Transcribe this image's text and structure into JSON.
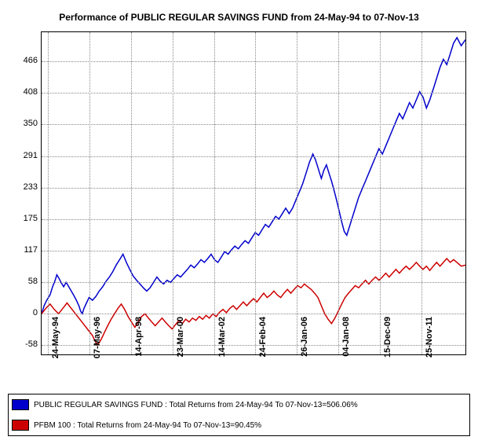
{
  "chart": {
    "title": "Performance of PUBLIC REGULAR SAVINGS FUND from 24-May-94 to 07-Nov-13",
    "title_fontsize": 12,
    "background_color": "#ffffff",
    "grid_color": "#888888",
    "border_color": "#000000",
    "ylim": [
      -75,
      520
    ],
    "yticks": [
      -58,
      0,
      58,
      117,
      175,
      233,
      291,
      350,
      408,
      466
    ],
    "x_labels": [
      "24-May-94",
      "07-May-96",
      "14-Apr-98",
      "23-Mar-00",
      "14-Mar-02",
      "24-Feb-04",
      "26-Jan-06",
      "04-Jan-08",
      "15-Dec-09",
      "25-Nov-11"
    ],
    "series": [
      {
        "name": "PUBLIC REGULAR SAVINGS FUND",
        "color": "#0000cc",
        "line_width": 1.5,
        "legend": "PUBLIC REGULAR SAVINGS FUND : Total Returns from 24-May-94 To 07-Nov-13=506.06%",
        "data": [
          [
            0,
            0
          ],
          [
            3,
            15
          ],
          [
            6,
            25
          ],
          [
            10,
            35
          ],
          [
            13,
            50
          ],
          [
            16,
            62
          ],
          [
            18,
            72
          ],
          [
            20,
            67
          ],
          [
            23,
            58
          ],
          [
            26,
            50
          ],
          [
            29,
            58
          ],
          [
            32,
            50
          ],
          [
            35,
            42
          ],
          [
            38,
            34
          ],
          [
            41,
            25
          ],
          [
            44,
            15
          ],
          [
            46,
            5
          ],
          [
            48,
            0
          ],
          [
            50,
            10
          ],
          [
            53,
            20
          ],
          [
            56,
            30
          ],
          [
            60,
            25
          ],
          [
            64,
            32
          ],
          [
            68,
            42
          ],
          [
            72,
            50
          ],
          [
            76,
            60
          ],
          [
            80,
            68
          ],
          [
            84,
            78
          ],
          [
            88,
            90
          ],
          [
            92,
            100
          ],
          [
            96,
            110
          ],
          [
            100,
            95
          ],
          [
            104,
            82
          ],
          [
            108,
            70
          ],
          [
            112,
            62
          ],
          [
            116,
            55
          ],
          [
            120,
            48
          ],
          [
            124,
            42
          ],
          [
            128,
            48
          ],
          [
            132,
            58
          ],
          [
            136,
            68
          ],
          [
            140,
            60
          ],
          [
            144,
            55
          ],
          [
            148,
            62
          ],
          [
            152,
            58
          ],
          [
            156,
            65
          ],
          [
            160,
            72
          ],
          [
            164,
            68
          ],
          [
            168,
            75
          ],
          [
            172,
            82
          ],
          [
            176,
            90
          ],
          [
            180,
            85
          ],
          [
            184,
            92
          ],
          [
            188,
            100
          ],
          [
            192,
            95
          ],
          [
            196,
            102
          ],
          [
            200,
            110
          ],
          [
            204,
            100
          ],
          [
            208,
            95
          ],
          [
            212,
            105
          ],
          [
            216,
            115
          ],
          [
            220,
            110
          ],
          [
            224,
            118
          ],
          [
            228,
            125
          ],
          [
            232,
            120
          ],
          [
            236,
            128
          ],
          [
            240,
            135
          ],
          [
            244,
            130
          ],
          [
            248,
            140
          ],
          [
            252,
            150
          ],
          [
            256,
            145
          ],
          [
            260,
            155
          ],
          [
            264,
            165
          ],
          [
            268,
            160
          ],
          [
            272,
            170
          ],
          [
            276,
            180
          ],
          [
            280,
            175
          ],
          [
            284,
            185
          ],
          [
            288,
            195
          ],
          [
            292,
            185
          ],
          [
            296,
            195
          ],
          [
            300,
            210
          ],
          [
            304,
            225
          ],
          [
            308,
            240
          ],
          [
            312,
            260
          ],
          [
            316,
            280
          ],
          [
            320,
            295
          ],
          [
            323,
            285
          ],
          [
            326,
            270
          ],
          [
            328,
            260
          ],
          [
            330,
            250
          ],
          [
            333,
            265
          ],
          [
            336,
            275
          ],
          [
            339,
            260
          ],
          [
            342,
            245
          ],
          [
            345,
            228
          ],
          [
            348,
            210
          ],
          [
            351,
            190
          ],
          [
            354,
            170
          ],
          [
            357,
            152
          ],
          [
            360,
            145
          ],
          [
            363,
            160
          ],
          [
            366,
            175
          ],
          [
            370,
            195
          ],
          [
            374,
            215
          ],
          [
            378,
            230
          ],
          [
            382,
            245
          ],
          [
            386,
            260
          ],
          [
            390,
            275
          ],
          [
            394,
            290
          ],
          [
            398,
            305
          ],
          [
            402,
            295
          ],
          [
            406,
            310
          ],
          [
            410,
            325
          ],
          [
            414,
            340
          ],
          [
            418,
            355
          ],
          [
            422,
            370
          ],
          [
            426,
            360
          ],
          [
            430,
            375
          ],
          [
            434,
            390
          ],
          [
            438,
            380
          ],
          [
            442,
            395
          ],
          [
            446,
            410
          ],
          [
            450,
            400
          ],
          [
            454,
            380
          ],
          [
            458,
            395
          ],
          [
            462,
            415
          ],
          [
            466,
            435
          ],
          [
            470,
            455
          ],
          [
            474,
            470
          ],
          [
            478,
            460
          ],
          [
            482,
            480
          ],
          [
            486,
            500
          ],
          [
            490,
            510
          ],
          [
            495,
            495
          ],
          [
            500,
            506
          ]
        ]
      },
      {
        "name": "PFBM 100",
        "color": "#cc0000",
        "line_width": 1.5,
        "legend": "PFBM 100 : Total Returns from 24-May-94 To 07-Nov-13=90.45%",
        "data": [
          [
            0,
            0
          ],
          [
            5,
            10
          ],
          [
            10,
            18
          ],
          [
            15,
            8
          ],
          [
            20,
            0
          ],
          [
            25,
            10
          ],
          [
            30,
            20
          ],
          [
            35,
            10
          ],
          [
            40,
            0
          ],
          [
            45,
            -10
          ],
          [
            50,
            -20
          ],
          [
            55,
            -30
          ],
          [
            60,
            -40
          ],
          [
            63,
            -50
          ],
          [
            66,
            -58
          ],
          [
            70,
            -48
          ],
          [
            74,
            -35
          ],
          [
            78,
            -22
          ],
          [
            82,
            -10
          ],
          [
            86,
            0
          ],
          [
            90,
            10
          ],
          [
            94,
            18
          ],
          [
            98,
            8
          ],
          [
            102,
            -5
          ],
          [
            106,
            -15
          ],
          [
            110,
            -25
          ],
          [
            114,
            -15
          ],
          [
            118,
            -5
          ],
          [
            122,
            0
          ],
          [
            126,
            -8
          ],
          [
            130,
            -15
          ],
          [
            134,
            -22
          ],
          [
            138,
            -15
          ],
          [
            142,
            -8
          ],
          [
            146,
            -15
          ],
          [
            150,
            -22
          ],
          [
            154,
            -28
          ],
          [
            158,
            -20
          ],
          [
            162,
            -12
          ],
          [
            166,
            -18
          ],
          [
            170,
            -10
          ],
          [
            174,
            -15
          ],
          [
            178,
            -8
          ],
          [
            182,
            -12
          ],
          [
            186,
            -5
          ],
          [
            190,
            -10
          ],
          [
            194,
            -3
          ],
          [
            198,
            -8
          ],
          [
            202,
            0
          ],
          [
            206,
            -5
          ],
          [
            210,
            3
          ],
          [
            214,
            8
          ],
          [
            218,
            2
          ],
          [
            222,
            10
          ],
          [
            226,
            15
          ],
          [
            230,
            8
          ],
          [
            234,
            15
          ],
          [
            238,
            22
          ],
          [
            242,
            15
          ],
          [
            246,
            22
          ],
          [
            250,
            28
          ],
          [
            254,
            22
          ],
          [
            258,
            30
          ],
          [
            262,
            38
          ],
          [
            266,
            30
          ],
          [
            270,
            35
          ],
          [
            274,
            42
          ],
          [
            278,
            35
          ],
          [
            282,
            30
          ],
          [
            286,
            38
          ],
          [
            290,
            45
          ],
          [
            294,
            38
          ],
          [
            298,
            45
          ],
          [
            302,
            52
          ],
          [
            306,
            48
          ],
          [
            310,
            55
          ],
          [
            314,
            50
          ],
          [
            318,
            45
          ],
          [
            322,
            38
          ],
          [
            326,
            30
          ],
          [
            330,
            15
          ],
          [
            334,
            0
          ],
          [
            338,
            -10
          ],
          [
            342,
            -18
          ],
          [
            346,
            -8
          ],
          [
            350,
            5
          ],
          [
            354,
            18
          ],
          [
            358,
            30
          ],
          [
            362,
            38
          ],
          [
            366,
            45
          ],
          [
            370,
            52
          ],
          [
            374,
            48
          ],
          [
            378,
            55
          ],
          [
            382,
            62
          ],
          [
            386,
            55
          ],
          [
            390,
            62
          ],
          [
            394,
            68
          ],
          [
            398,
            62
          ],
          [
            402,
            68
          ],
          [
            406,
            75
          ],
          [
            410,
            68
          ],
          [
            414,
            75
          ],
          [
            418,
            82
          ],
          [
            422,
            75
          ],
          [
            426,
            82
          ],
          [
            430,
            88
          ],
          [
            434,
            82
          ],
          [
            438,
            88
          ],
          [
            442,
            95
          ],
          [
            446,
            88
          ],
          [
            450,
            82
          ],
          [
            454,
            88
          ],
          [
            458,
            80
          ],
          [
            462,
            88
          ],
          [
            466,
            95
          ],
          [
            470,
            88
          ],
          [
            474,
            95
          ],
          [
            478,
            102
          ],
          [
            482,
            95
          ],
          [
            486,
            100
          ],
          [
            490,
            95
          ],
          [
            495,
            88
          ],
          [
            500,
            90
          ]
        ]
      }
    ]
  }
}
